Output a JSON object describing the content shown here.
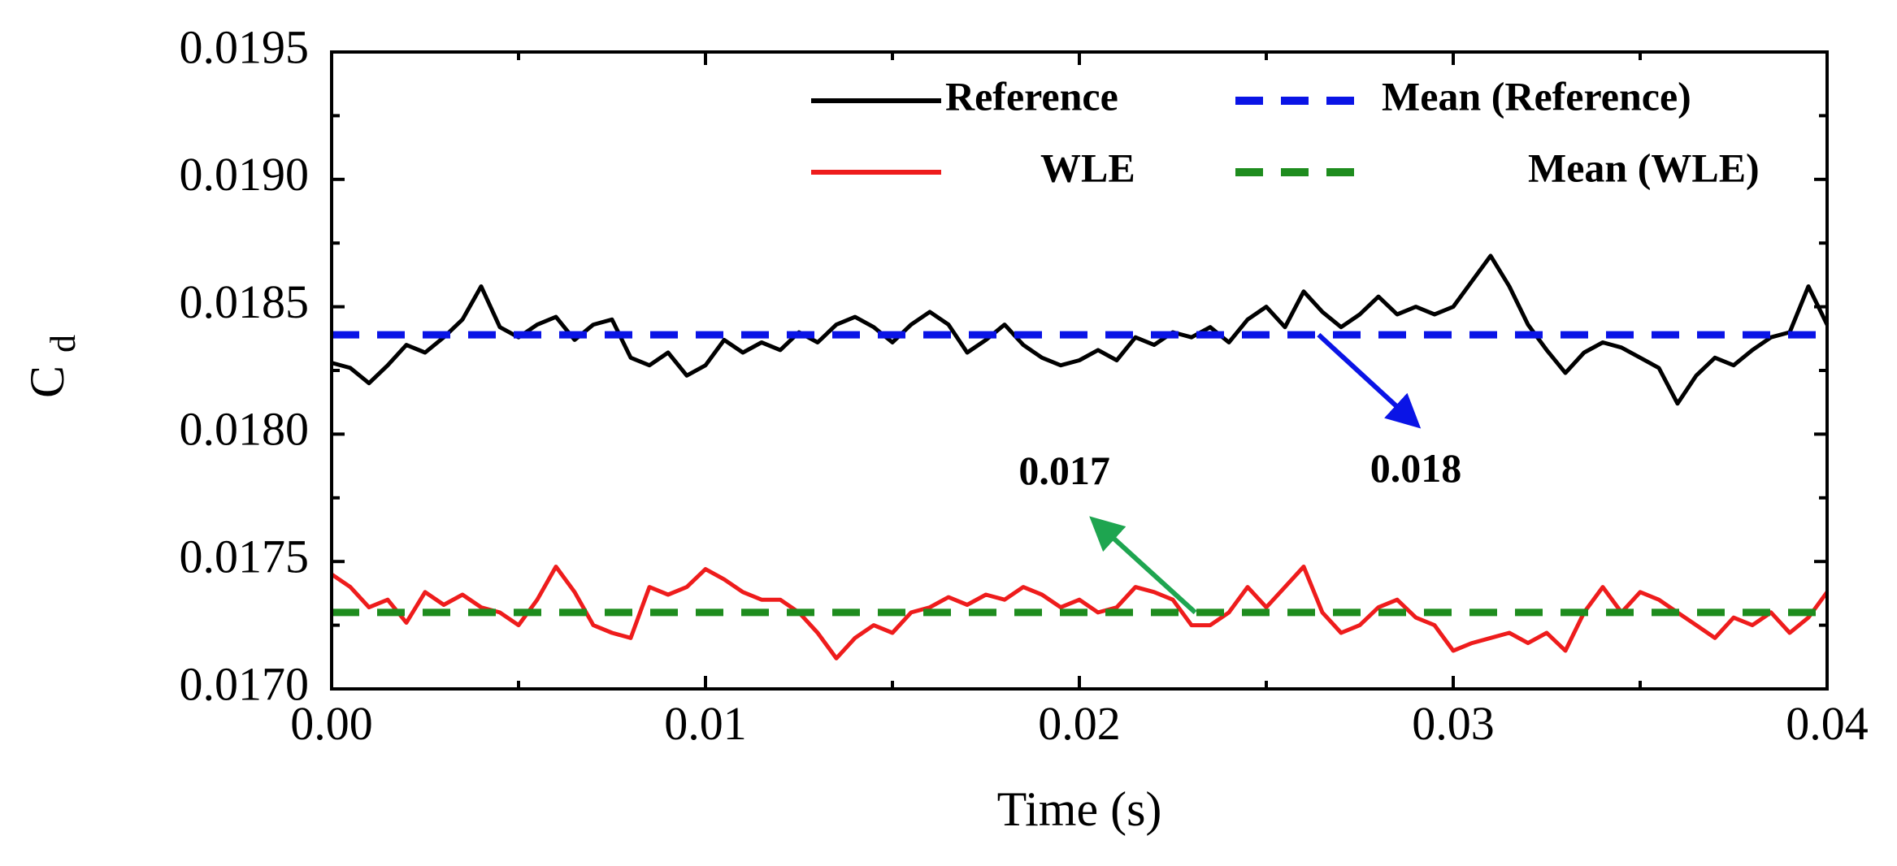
{
  "chart_data": {
    "type": "line",
    "title": "",
    "xlabel": "Time (s)",
    "ylabel": "C",
    "ylabel_sub": "d",
    "xlim": [
      0.0,
      0.04
    ],
    "ylim": [
      0.017,
      0.0195
    ],
    "x_ticks": [
      0.0,
      0.01,
      0.02,
      0.03,
      0.04
    ],
    "x_tick_labels": [
      "0.00",
      "0.01",
      "0.02",
      "0.03",
      "0.04"
    ],
    "y_ticks": [
      0.017,
      0.0175,
      0.018,
      0.0185,
      0.019,
      0.0195
    ],
    "y_tick_labels": [
      "0.0170",
      "0.0175",
      "0.0180",
      "0.0185",
      "0.0190",
      "0.0195"
    ],
    "grid": false,
    "legend_position": "top-right",
    "series": [
      {
        "name": "Reference",
        "color": "#000000",
        "style": "solid",
        "x": [
          0.0,
          0.0005,
          0.001,
          0.0015,
          0.002,
          0.0025,
          0.003,
          0.0035,
          0.004,
          0.0045,
          0.005,
          0.0055,
          0.006,
          0.0065,
          0.007,
          0.0075,
          0.008,
          0.0085,
          0.009,
          0.0095,
          0.01,
          0.0105,
          0.011,
          0.0115,
          0.012,
          0.0125,
          0.013,
          0.0135,
          0.014,
          0.0145,
          0.015,
          0.0155,
          0.016,
          0.0165,
          0.017,
          0.0175,
          0.018,
          0.0185,
          0.019,
          0.0195,
          0.02,
          0.0205,
          0.021,
          0.0215,
          0.022,
          0.0225,
          0.023,
          0.0235,
          0.024,
          0.0245,
          0.025,
          0.0255,
          0.026,
          0.0265,
          0.027,
          0.0275,
          0.028,
          0.0285,
          0.029,
          0.0295,
          0.03,
          0.0305,
          0.031,
          0.0315,
          0.032,
          0.0325,
          0.033,
          0.0335,
          0.034,
          0.0345,
          0.035,
          0.0355,
          0.036,
          0.0365,
          0.037,
          0.0375,
          0.038,
          0.0385,
          0.039,
          0.0395,
          0.04
        ],
        "values": [
          0.01828,
          0.01826,
          0.0182,
          0.01827,
          0.01835,
          0.01832,
          0.01838,
          0.01845,
          0.01858,
          0.01842,
          0.01838,
          0.01843,
          0.01846,
          0.01837,
          0.01843,
          0.01845,
          0.0183,
          0.01827,
          0.01832,
          0.01823,
          0.01827,
          0.01837,
          0.01832,
          0.01836,
          0.01833,
          0.0184,
          0.01836,
          0.01843,
          0.01846,
          0.01842,
          0.01836,
          0.01843,
          0.01848,
          0.01843,
          0.01832,
          0.01837,
          0.01843,
          0.01835,
          0.0183,
          0.01827,
          0.01829,
          0.01833,
          0.01829,
          0.01838,
          0.01835,
          0.0184,
          0.01838,
          0.01842,
          0.01836,
          0.01845,
          0.0185,
          0.01842,
          0.01856,
          0.01848,
          0.01842,
          0.01847,
          0.01854,
          0.01847,
          0.0185,
          0.01847,
          0.0185,
          0.0186,
          0.0187,
          0.01858,
          0.01843,
          0.01833,
          0.01824,
          0.01832,
          0.01836,
          0.01834,
          0.0183,
          0.01826,
          0.01812,
          0.01823,
          0.0183,
          0.01827,
          0.01833,
          0.01838,
          0.0184,
          0.01858,
          0.01843
        ]
      },
      {
        "name": "Mean (Reference)",
        "color": "#0a14e6",
        "style": "dashed",
        "x": [
          0.0,
          0.04
        ],
        "values": [
          0.01839,
          0.01839
        ]
      },
      {
        "name": "WLE",
        "color": "#ee1c1c",
        "style": "solid",
        "x": [
          0.0,
          0.0005,
          0.001,
          0.0015,
          0.002,
          0.0025,
          0.003,
          0.0035,
          0.004,
          0.0045,
          0.005,
          0.0055,
          0.006,
          0.0065,
          0.007,
          0.0075,
          0.008,
          0.0085,
          0.009,
          0.0095,
          0.01,
          0.0105,
          0.011,
          0.0115,
          0.012,
          0.0125,
          0.013,
          0.0135,
          0.014,
          0.0145,
          0.015,
          0.0155,
          0.016,
          0.0165,
          0.017,
          0.0175,
          0.018,
          0.0185,
          0.019,
          0.0195,
          0.02,
          0.0205,
          0.021,
          0.0215,
          0.022,
          0.0225,
          0.023,
          0.0235,
          0.024,
          0.0245,
          0.025,
          0.0255,
          0.026,
          0.0265,
          0.027,
          0.0275,
          0.028,
          0.0285,
          0.029,
          0.0295,
          0.03,
          0.0305,
          0.031,
          0.0315,
          0.032,
          0.0325,
          0.033,
          0.0335,
          0.034,
          0.0345,
          0.035,
          0.0355,
          0.036,
          0.0365,
          0.037,
          0.0375,
          0.038,
          0.0385,
          0.039,
          0.0395,
          0.04
        ],
        "values": [
          0.01745,
          0.0174,
          0.01732,
          0.01735,
          0.01726,
          0.01738,
          0.01733,
          0.01737,
          0.01732,
          0.0173,
          0.01725,
          0.01735,
          0.01748,
          0.01738,
          0.01725,
          0.01722,
          0.0172,
          0.0174,
          0.01737,
          0.0174,
          0.01747,
          0.01743,
          0.01738,
          0.01735,
          0.01735,
          0.0173,
          0.01722,
          0.01712,
          0.0172,
          0.01725,
          0.01722,
          0.0173,
          0.01732,
          0.01736,
          0.01733,
          0.01737,
          0.01735,
          0.0174,
          0.01737,
          0.01732,
          0.01735,
          0.0173,
          0.01732,
          0.0174,
          0.01738,
          0.01735,
          0.01725,
          0.01725,
          0.0173,
          0.0174,
          0.01732,
          0.0174,
          0.01748,
          0.0173,
          0.01722,
          0.01725,
          0.01732,
          0.01735,
          0.01728,
          0.01725,
          0.01715,
          0.01718,
          0.0172,
          0.01722,
          0.01718,
          0.01722,
          0.01715,
          0.0173,
          0.0174,
          0.0173,
          0.01738,
          0.01735,
          0.0173,
          0.01725,
          0.0172,
          0.01728,
          0.01725,
          0.0173,
          0.01722,
          0.01728,
          0.01738
        ]
      },
      {
        "name": "Mean (WLE)",
        "color": "#1e8c1e",
        "style": "dashed",
        "x": [
          0.0,
          0.04
        ],
        "values": [
          0.0173,
          0.0173
        ]
      }
    ],
    "annotations": [
      {
        "text": "0.018",
        "color": "#0a14e6",
        "arrow_from": [
          0.0264,
          0.01839
        ],
        "arrow_to": [
          0.029,
          0.01804
        ],
        "label_at": [
          0.029,
          0.01785
        ]
      },
      {
        "text": "0.017",
        "color": "#1ea550",
        "arrow_from": [
          0.0231,
          0.0173
        ],
        "arrow_to": [
          0.0204,
          0.01766
        ],
        "label_at": [
          0.0196,
          0.01784
        ]
      }
    ]
  }
}
